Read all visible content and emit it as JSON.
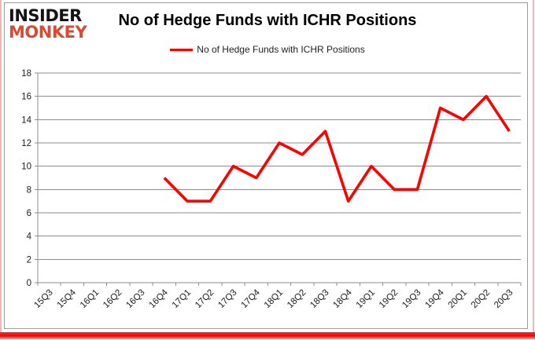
{
  "logo": {
    "line1": "INSIDER",
    "line2": "MONKEY",
    "line1_color": "#141414",
    "line2_color": "#d84a32"
  },
  "header": {
    "title": "No of Hedge Funds with ICHR Positions"
  },
  "legend": {
    "label": "No of Hedge Funds with ICHR Positions",
    "swatch_color": "#ff0000"
  },
  "chart_data": {
    "type": "line",
    "title": "No of Hedge Funds with ICHR Positions",
    "categories": [
      "15Q3",
      "15Q4",
      "16Q1",
      "16Q2",
      "16Q3",
      "16Q4",
      "17Q1",
      "17Q2",
      "17Q3",
      "17Q4",
      "18Q1",
      "18Q2",
      "18Q3",
      "18Q4",
      "19Q1",
      "19Q2",
      "19Q3",
      "19Q4",
      "20Q1",
      "20Q2",
      "20Q3"
    ],
    "series": [
      {
        "name": "No of Hedge Funds with ICHR Positions",
        "color": "#ff0000",
        "values": [
          null,
          null,
          null,
          null,
          null,
          9,
          7,
          7,
          10,
          9,
          12,
          11,
          13,
          7,
          10,
          8,
          8,
          15,
          14,
          16,
          13
        ]
      }
    ],
    "xlabel": "",
    "ylabel": "",
    "ylim": [
      0,
      18
    ],
    "ytick_step": 2,
    "grid": true,
    "legend_position": "top",
    "grid_color": "#8c8c8c",
    "axis_label_color": "#1a1a1a"
  }
}
